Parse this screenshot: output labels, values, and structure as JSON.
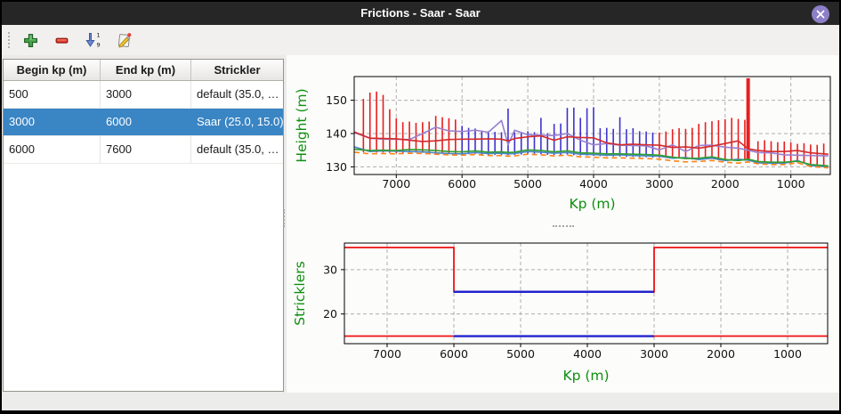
{
  "window": {
    "title": "Frictions - Saar - Saar"
  },
  "toolbar": {
    "icons": [
      "add-row",
      "remove-row",
      "sort-ascending",
      "edit"
    ]
  },
  "table": {
    "headers": [
      "Begin kp (m)",
      "End kp (m)",
      "Strickler"
    ],
    "rows": [
      [
        "500",
        "3000",
        "default (35.0, …"
      ],
      [
        "3000",
        "6000",
        "Saar (25.0, 15.0)"
      ],
      [
        "6000",
        "7600",
        "default (35.0, …"
      ]
    ],
    "selected_row": 1
  },
  "colors": {
    "titlebar_bg": "#262626",
    "close_button": "#8d7fc7",
    "selected_row_bg": "#3a85c4",
    "axis_label_green": "#0f8f0f",
    "bar_red": "#e81e1e",
    "bar_blue": "#3d33cf",
    "step_red": "#ee1111",
    "step_blue": "#2323cc"
  },
  "chart_data": [
    {
      "type": "line",
      "title": "",
      "xlabel": "Kp (m)",
      "ylabel": "Height (m)",
      "xlim": [
        7640,
        400
      ],
      "ylim": [
        127.7,
        157.1
      ],
      "x_ticks": [
        7000,
        6000,
        5000,
        4000,
        3000,
        2000,
        1000
      ],
      "y_ticks": [
        130,
        140,
        150
      ],
      "grid": true,
      "grid_color": "#b0aeae",
      "thick_bar_kp": 1650,
      "bar_groups": [
        {
          "name": "default-section-bars",
          "color": "#e81e1e",
          "bars": [
            [
              7500,
              134.4,
              150.4
            ],
            [
              7400,
              134.4,
              152.3
            ],
            [
              7300,
              134.3,
              152.6
            ],
            [
              7200,
              134.3,
              151.6
            ],
            [
              7100,
              134.2,
              147.3
            ],
            [
              7000,
              134.1,
              144.6
            ],
            [
              6900,
              134.2,
              143.4
            ],
            [
              6800,
              134.3,
              143.6
            ],
            [
              6700,
              134.3,
              143.2
            ],
            [
              6600,
              134.2,
              143.4
            ],
            [
              6500,
              134.3,
              143.6
            ],
            [
              6400,
              134.2,
              145.3
            ],
            [
              6300,
              134.0,
              144.9
            ],
            [
              6200,
              133.9,
              144.6
            ],
            [
              6100,
              133.9,
              144.2
            ],
            [
              3000,
              132.8,
              140.3
            ],
            [
              2900,
              132.7,
              140.6
            ],
            [
              2800,
              132.6,
              141.3
            ],
            [
              2700,
              132.5,
              141.6
            ],
            [
              2600,
              132.3,
              141.4
            ],
            [
              2500,
              132.2,
              141.7
            ],
            [
              2400,
              132.2,
              142.9
            ],
            [
              2300,
              132.4,
              143.4
            ],
            [
              2200,
              132.5,
              143.7
            ],
            [
              2100,
              132.0,
              144.0
            ],
            [
              2000,
              131.8,
              144.3
            ],
            [
              1900,
              132.0,
              144.7
            ],
            [
              1800,
              131.9,
              144.4
            ],
            [
              1700,
              131.9,
              144.1
            ],
            [
              1650,
              132.0,
              156.6
            ],
            [
              1500,
              131.3,
              137.7
            ],
            [
              1400,
              131.2,
              138.0
            ],
            [
              1300,
              131.2,
              137.7
            ],
            [
              1200,
              131.1,
              137.4
            ],
            [
              1100,
              131.1,
              137.6
            ],
            [
              1000,
              131.0,
              137.3
            ],
            [
              900,
              131.3,
              136.9
            ],
            [
              800,
              131.2,
              137.1
            ],
            [
              700,
              130.8,
              136.7
            ],
            [
              600,
              130.5,
              136.6
            ],
            [
              500,
              130.2,
              137.0
            ]
          ]
        },
        {
          "name": "selected-section-bars",
          "color": "#3d33cf",
          "bars": [
            [
              6000,
              133.8,
              142.3
            ],
            [
              5900,
              133.8,
              141.7
            ],
            [
              5800,
              133.9,
              141.5
            ],
            [
              5700,
              133.7,
              140.9
            ],
            [
              5600,
              133.6,
              140.7
            ],
            [
              5500,
              133.6,
              140.5
            ],
            [
              5400,
              133.6,
              140.4
            ],
            [
              5300,
              133.5,
              147.5
            ],
            [
              5200,
              133.6,
              140.4
            ],
            [
              5100,
              133.7,
              140.3
            ],
            [
              5000,
              133.9,
              140.7
            ],
            [
              4900,
              133.9,
              140.4
            ],
            [
              4800,
              133.8,
              144.7
            ],
            [
              4700,
              133.6,
              140.1
            ],
            [
              4600,
              133.6,
              142.9
            ],
            [
              4500,
              133.6,
              143.0
            ],
            [
              4400,
              133.7,
              147.7
            ],
            [
              4300,
              133.5,
              147.8
            ],
            [
              4200,
              133.4,
              144.7
            ],
            [
              4100,
              133.4,
              147.6
            ],
            [
              4000,
              133.3,
              147.9
            ],
            [
              3900,
              133.2,
              141.6
            ],
            [
              3800,
              133.2,
              141.7
            ],
            [
              3700,
              133.1,
              141.4
            ],
            [
              3600,
              133.1,
              144.9
            ],
            [
              3500,
              133.0,
              141.3
            ],
            [
              3400,
              133.0,
              141.6
            ],
            [
              3300,
              132.9,
              140.7
            ],
            [
              3200,
              132.9,
              140.6
            ],
            [
              3100,
              132.8,
              140.3
            ]
          ]
        }
      ],
      "line_x": [
        7640,
        7400,
        7200,
        7000,
        6800,
        6600,
        6400,
        6200,
        6000,
        5800,
        5600,
        5400,
        5300,
        5200,
        5000,
        4800,
        4600,
        4400,
        4200,
        4000,
        3800,
        3600,
        3400,
        3200,
        3000,
        2800,
        2600,
        2400,
        2200,
        2000,
        1800,
        1650,
        1500,
        1300,
        1100,
        900,
        700,
        430
      ],
      "lines": [
        {
          "name": "level-purple",
          "color": "#9a7fd0",
          "dash": false,
          "values": [
            140.3,
            138.6,
            138.3,
            138.3,
            138.2,
            140.0,
            141.9,
            140.8,
            140.6,
            141.0,
            140.4,
            143.9,
            136.6,
            141.0,
            139.6,
            139.5,
            139.4,
            140.0,
            138.0,
            136.6,
            137.0,
            136.5,
            136.4,
            136.3,
            135.1,
            136.6,
            134.6,
            136.4,
            136.5,
            135.9,
            135.6,
            135.0,
            134.3,
            134.2,
            133.6,
            133.5,
            133.4,
            133.3
          ]
        },
        {
          "name": "level-red",
          "color": "#d42a2a",
          "dash": false,
          "values": [
            140.5,
            138.6,
            138.5,
            138.4,
            138.0,
            137.6,
            137.8,
            138.2,
            138.3,
            138.3,
            138.4,
            138.3,
            137.8,
            138.5,
            139.0,
            139.3,
            138.0,
            139.0,
            138.8,
            138.7,
            137.2,
            136.6,
            136.8,
            136.6,
            136.5,
            135.8,
            136.0,
            135.6,
            136.2,
            137.0,
            137.8,
            135.4,
            134.9,
            134.6,
            134.6,
            134.9,
            134.2,
            133.8
          ]
        },
        {
          "name": "bed-blue",
          "color": "#4b86c5",
          "dash": false,
          "values": [
            136.0,
            134.6,
            134.8,
            134.7,
            134.6,
            134.5,
            134.2,
            134.0,
            133.9,
            134.3,
            134.0,
            134.1,
            133.9,
            134.0,
            134.6,
            134.4,
            134.1,
            134.3,
            133.8,
            133.7,
            133.5,
            133.6,
            133.4,
            133.3,
            133.2,
            132.6,
            132.8,
            132.2,
            132.6,
            131.9,
            132.3,
            132.0,
            131.2,
            131.1,
            131.1,
            131.9,
            130.4,
            130.0
          ]
        },
        {
          "name": "bed-green",
          "color": "#2f9e2f",
          "dash": false,
          "values": [
            135.3,
            134.9,
            135.0,
            134.9,
            135.2,
            135.1,
            134.9,
            134.6,
            134.5,
            134.8,
            134.4,
            134.5,
            134.3,
            134.4,
            135.1,
            134.9,
            134.5,
            134.8,
            134.2,
            134.1,
            133.9,
            133.9,
            133.8,
            133.7,
            133.5,
            132.9,
            132.5,
            132.6,
            133.0,
            132.2,
            131.9,
            132.3,
            131.6,
            131.4,
            131.4,
            131.7,
            130.7,
            130.3
          ]
        },
        {
          "name": "bed-orange-dashed",
          "color": "#ff8519",
          "dash": true,
          "values": [
            134.4,
            133.9,
            134.0,
            133.9,
            134.1,
            134.0,
            133.8,
            133.6,
            133.5,
            133.7,
            133.4,
            133.4,
            133.2,
            133.3,
            133.8,
            133.6,
            133.3,
            133.5,
            133.0,
            132.9,
            132.7,
            132.7,
            132.6,
            132.5,
            132.3,
            131.8,
            131.5,
            131.6,
            131.9,
            131.4,
            131.1,
            131.5,
            130.9,
            130.7,
            130.7,
            131.2,
            130.1,
            129.7
          ]
        }
      ]
    },
    {
      "type": "line",
      "title": "",
      "xlabel": "Kp (m)",
      "ylabel": "Stricklers",
      "xlim": [
        7640,
        400
      ],
      "ylim": [
        13.3,
        36.0
      ],
      "x_ticks": [
        7000,
        6000,
        5000,
        4000,
        3000,
        2000,
        1000
      ],
      "y_ticks": [
        20,
        30
      ],
      "grid": true,
      "grid_color": "#b0aeae",
      "steps": [
        {
          "name": "main-channel-strickler-default",
          "color": "#ee1111",
          "width": 1.8,
          "points": [
            [
              7640,
              35
            ],
            [
              6000,
              35
            ],
            [
              6000,
              25
            ],
            [
              3000,
              25
            ],
            [
              3000,
              35
            ],
            [
              400,
              35
            ]
          ]
        },
        {
          "name": "floodplain-strickler-default",
          "color": "#ee1111",
          "width": 1.8,
          "points": [
            [
              7640,
              15
            ],
            [
              400,
              15
            ]
          ]
        },
        {
          "name": "main-channel-strickler-selected",
          "color": "#2323cc",
          "width": 2.4,
          "points": [
            [
              6000,
              25
            ],
            [
              3000,
              25
            ]
          ]
        },
        {
          "name": "floodplain-strickler-selected",
          "color": "#2323cc",
          "width": 2.4,
          "points": [
            [
              6000,
              15
            ],
            [
              3000,
              15
            ]
          ]
        }
      ]
    }
  ]
}
